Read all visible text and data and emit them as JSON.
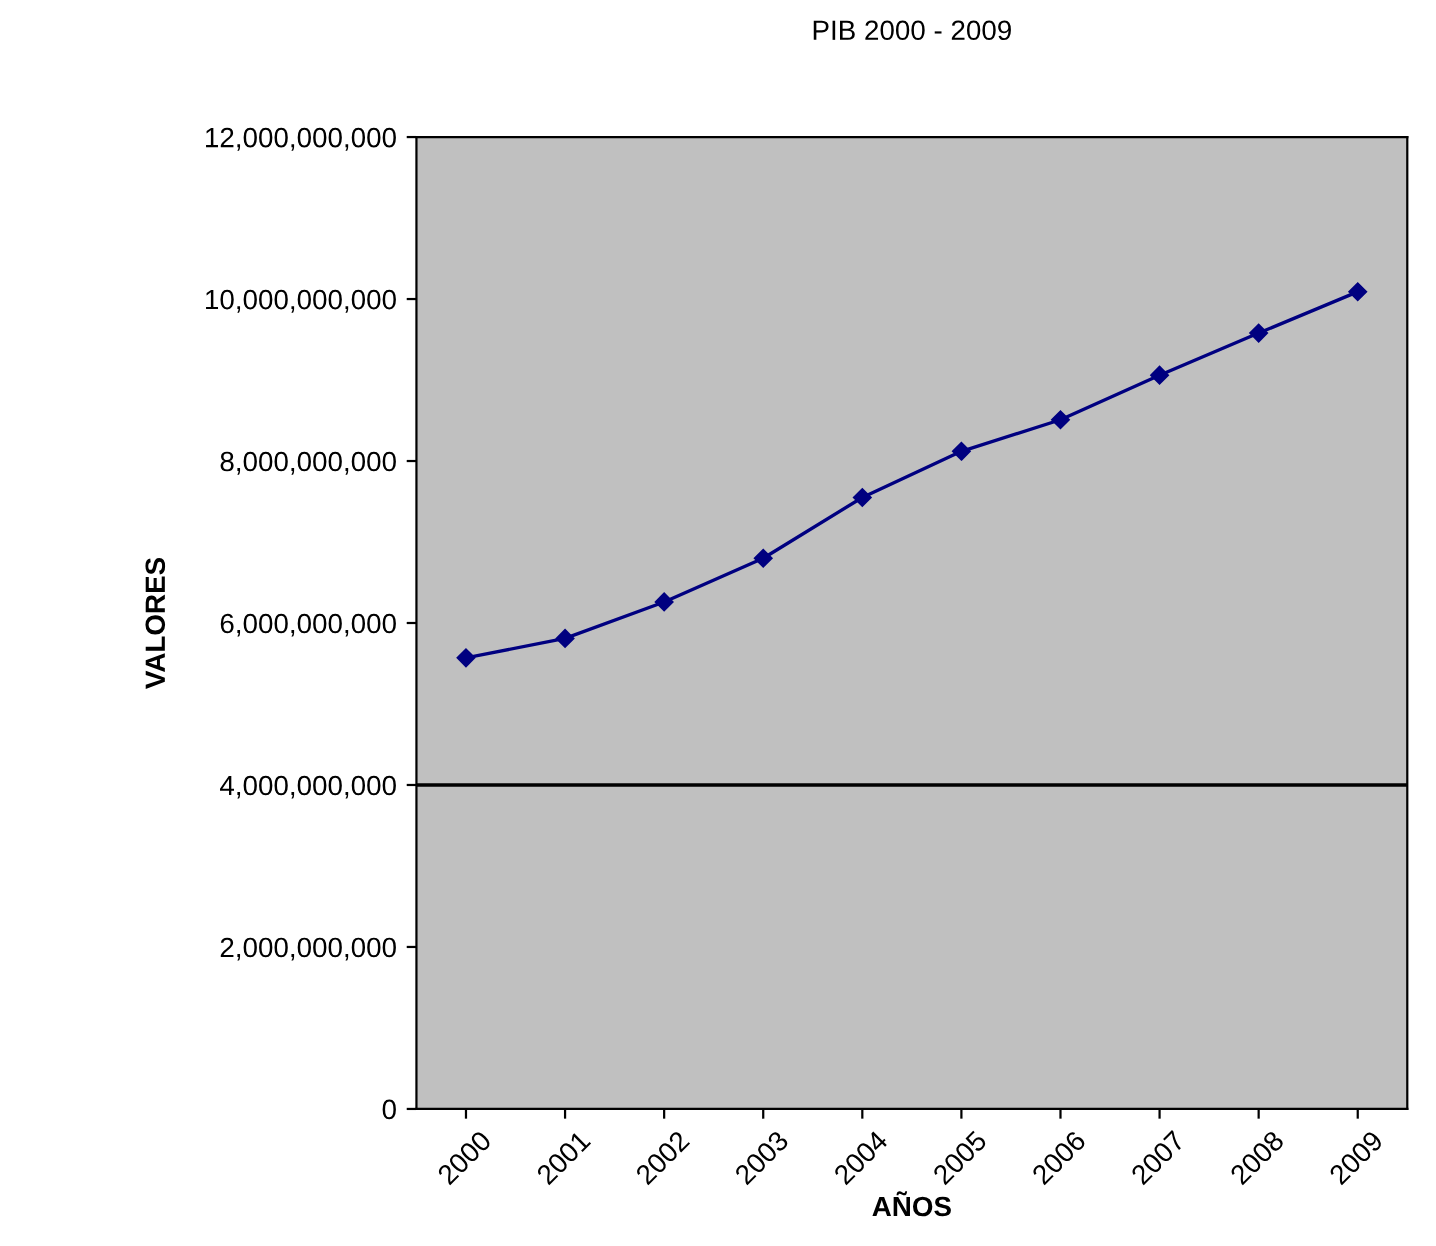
{
  "chart_data": {
    "type": "line",
    "title": "PIB 2000 - 2009",
    "xlabel": "AÑOS",
    "ylabel": "VALORES",
    "categories": [
      "2000",
      "2001",
      "2002",
      "2003",
      "2004",
      "2005",
      "2006",
      "2007",
      "2008",
      "2009"
    ],
    "series": [
      {
        "color": "#000080",
        "values": [
          5570000000,
          5810000000,
          6260000000,
          6800000000,
          7550000000,
          8120000000,
          8510000000,
          9060000000,
          9580000000,
          10090000000
        ]
      }
    ],
    "ylim": [
      0,
      12000000000
    ],
    "yticks": [
      {
        "value": 0,
        "label": "0"
      },
      {
        "value": 2000000000,
        "label": "2,000,000,000"
      },
      {
        "value": 4000000000,
        "label": "4,000,000,000"
      },
      {
        "value": 6000000000,
        "label": "6,000,000,000"
      },
      {
        "value": 8000000000,
        "label": "8,000,000,000"
      },
      {
        "value": 10000000000,
        "label": "10,000,000,000"
      },
      {
        "value": 12000000000,
        "label": "12,000,000,000"
      }
    ],
    "ref_lines": [
      {
        "axis": "y",
        "value": 4000000000,
        "color": "#000000",
        "line_style": "solid"
      }
    ],
    "grid": false,
    "legend": false,
    "marker": "diamond",
    "line_style": "solid"
  }
}
